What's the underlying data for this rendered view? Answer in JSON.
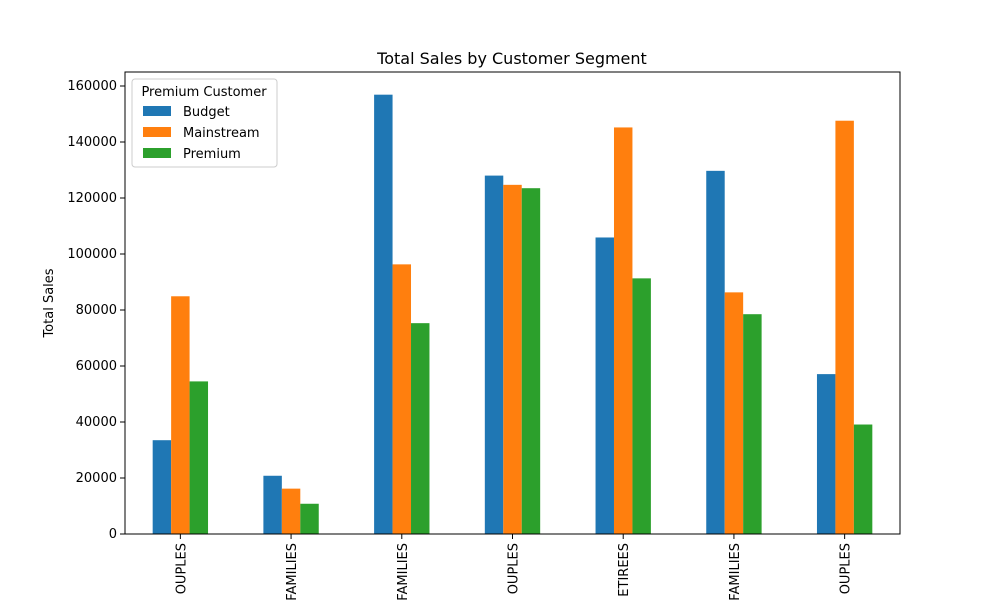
{
  "chart_data": {
    "type": "bar",
    "title": "Total Sales by Customer Segment",
    "xlabel": "",
    "ylabel": "Total Sales",
    "ylim": [
      0,
      165000
    ],
    "yticks": [
      0,
      20000,
      40000,
      60000,
      80000,
      100000,
      120000,
      140000,
      160000
    ],
    "categories": [
      "OUPLES",
      "FAMILIES",
      "FAMILIES",
      "OUPLES",
      "ETIREES",
      "FAMILIES",
      "OUPLES"
    ],
    "legend": {
      "title": "Premium Customer",
      "placement": "top-left"
    },
    "series": [
      {
        "name": "Budget",
        "color": "#1f77b4",
        "values": [
          33500,
          20800,
          156900,
          128000,
          105900,
          129700,
          57100
        ]
      },
      {
        "name": "Mainstream",
        "color": "#ff7f0e",
        "values": [
          84900,
          16200,
          96300,
          124700,
          145200,
          86300,
          147600
        ]
      },
      {
        "name": "Premium",
        "color": "#2ca02c",
        "values": [
          54500,
          10800,
          75300,
          123500,
          91300,
          78500,
          39100
        ]
      }
    ]
  }
}
